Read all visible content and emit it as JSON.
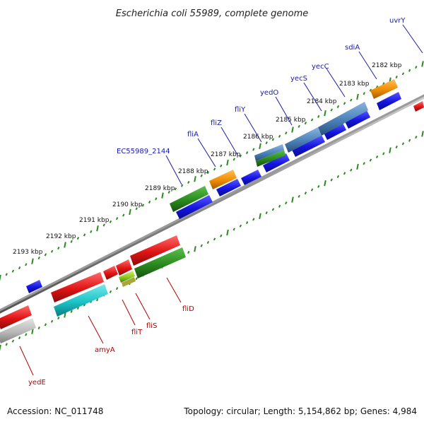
{
  "title": "Escherichia coli 55989, complete genome",
  "accession": "Accession: NC_011748",
  "topology": "Topology: circular; Length: 5,154,862 bp; Genes: 4,984",
  "colors": {
    "backbone": "#8a8a8a",
    "tick": "#2a8a1e",
    "forward_gene": "#1414e0",
    "red_gene": "#e01414",
    "green_gene": "#2a8a1e",
    "orange_gene": "#f08c00",
    "steelblue_gene": "#4a80b8",
    "cyan_gene": "#1ac4c8",
    "grey_gene": "#b8b8b8",
    "upper_label": "#1a1aa8",
    "lower_label": "#b40000"
  },
  "kbp_ticks": [
    "2182 kbp",
    "2183 kbp",
    "2184 kbp",
    "2185 kbp",
    "2186 kbp",
    "2187 kbp",
    "2188 kbp",
    "2189 kbp",
    "2190 kbp",
    "2191 kbp",
    "2192 kbp",
    "2193 kbp"
  ],
  "upper_gene_labels": [
    "uvrY",
    "sdiA",
    "yecC",
    "yecS",
    "yedO",
    "fliY",
    "fliZ",
    "fliA",
    "EC55989_2144"
  ],
  "lower_gene_labels": [
    "fliD",
    "fliS",
    "fliT",
    "amyA",
    "yedE"
  ]
}
